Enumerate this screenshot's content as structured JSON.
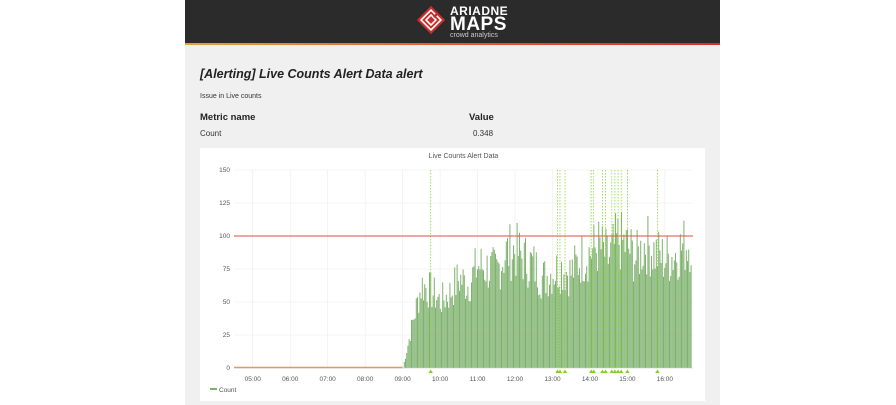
{
  "header": {
    "brand_line1": "ARIADNE",
    "brand_line2": "MAPS",
    "brand_tagline": "crowd analytics",
    "logo_icon": "ariadne-maze-logo-icon"
  },
  "alert": {
    "title": "[Alerting] Live Counts Alert Data alert",
    "message": "Issue in Live counts"
  },
  "metrics_table": {
    "headers": [
      "Metric name",
      "Value"
    ],
    "rows": [
      {
        "name": "Count",
        "value": "0.348"
      }
    ]
  },
  "colors": {
    "header_bg": "#2b2b2b",
    "bar_green": "#7eb26d",
    "threshold_red": "#e24d42",
    "baseline_orange": "#ef843c",
    "annotation_green": "#7ed321"
  },
  "chart_data": {
    "type": "bar",
    "title": "Live Counts Alert Data",
    "xlabel": "",
    "ylabel": "",
    "xlim": [
      "04:30",
      "16:45"
    ],
    "ylim": [
      0,
      150
    ],
    "yticks": [
      0,
      25,
      50,
      75,
      100,
      125,
      150
    ],
    "xticks": [
      "05:00",
      "06:00",
      "07:00",
      "08:00",
      "09:00",
      "10:00",
      "11:00",
      "12:00",
      "13:00",
      "14:00",
      "15:00",
      "16:00"
    ],
    "threshold": 100,
    "grid": true,
    "legend": "bottom-left",
    "series": [
      {
        "name": "Count",
        "x": [
          "04:30",
          "09:00",
          "09:15",
          "09:30",
          "09:45",
          "10:00",
          "10:15",
          "10:30",
          "10:45",
          "11:00",
          "11:15",
          "11:30",
          "11:45",
          "12:00",
          "12:15",
          "12:30",
          "12:45",
          "13:00",
          "13:15",
          "13:30",
          "13:45",
          "14:00",
          "14:15",
          "14:30",
          "14:45",
          "15:00",
          "15:15",
          "15:30",
          "15:45",
          "16:00",
          "16:15",
          "16:30",
          "16:45"
        ],
        "values": [
          0,
          0,
          35,
          65,
          60,
          52,
          58,
          70,
          65,
          80,
          78,
          75,
          90,
          92,
          85,
          80,
          70,
          75,
          78,
          74,
          85,
          90,
          95,
          85,
          100,
          95,
          85,
          98,
          90,
          85,
          88,
          95,
          100
        ]
      }
    ],
    "annotations": [
      "09:45",
      "13:08",
      "13:12",
      "13:20",
      "14:02",
      "14:06",
      "14:20",
      "14:25",
      "14:35",
      "14:40",
      "14:45",
      "14:50",
      "15:00",
      "15:48"
    ]
  }
}
